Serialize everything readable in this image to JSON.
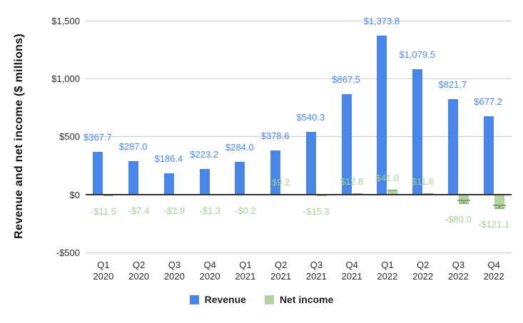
{
  "chart_data": {
    "type": "bar",
    "title": "",
    "xlabel": "",
    "ylabel": "Revenue and net income ($ millions)",
    "ylim": [
      -500,
      1500
    ],
    "grid": true,
    "legend_position": "bottom",
    "yticks": [
      {
        "value": 1500,
        "label": "$1,500"
      },
      {
        "value": 1000,
        "label": "$1,000"
      },
      {
        "value": 500,
        "label": "$500"
      },
      {
        "value": 0,
        "label": "$0"
      },
      {
        "value": -500,
        "label": "-$500"
      }
    ],
    "categories": [
      {
        "quarter": "Q1",
        "year": "2020"
      },
      {
        "quarter": "Q2",
        "year": "2020"
      },
      {
        "quarter": "Q3",
        "year": "2020"
      },
      {
        "quarter": "Q4",
        "year": "2020"
      },
      {
        "quarter": "Q1",
        "year": "2021"
      },
      {
        "quarter": "Q2",
        "year": "2021"
      },
      {
        "quarter": "Q3",
        "year": "2021"
      },
      {
        "quarter": "Q4",
        "year": "2021"
      },
      {
        "quarter": "Q1",
        "year": "2022"
      },
      {
        "quarter": "Q2",
        "year": "2022"
      },
      {
        "quarter": "Q3",
        "year": "2022"
      },
      {
        "quarter": "Q4",
        "year": "2022"
      }
    ],
    "series": [
      {
        "name": "Revenue",
        "color": "#4a86e8",
        "label_color": "#4a86e8",
        "values": [
          367.7,
          287.0,
          186.4,
          223.2,
          284.0,
          378.6,
          540.3,
          867.5,
          1373.8,
          1079.5,
          821.7,
          677.2
        ],
        "labels": [
          "$367.7",
          "$287.0",
          "$186.4",
          "$223.2",
          "$284.0",
          "$378.6",
          "$540.3",
          "$867.5",
          "$1,373.8",
          "$1,079.5",
          "$821.7",
          "$677.2"
        ]
      },
      {
        "name": "Net income",
        "color": "#b3d1a2",
        "cap_color": "#8fb17d",
        "whisker_color": "#7da06c",
        "label_color": "#a6ce94",
        "values": [
          -11.5,
          -7.4,
          -2.9,
          -1.3,
          -0.2,
          9.2,
          -15.3,
          12.8,
          41.0,
          11.6,
          -80.0,
          -121.1
        ],
        "labels": [
          "-$11.5",
          "-$7.4",
          "-$2.9",
          "-$1.3",
          "-$0.2",
          "$9.2",
          "-$15.3",
          "$12.8",
          "$41.0",
          "$11.6",
          "-$80.0",
          "-$121.1"
        ],
        "error_whisker_indices": [
          10,
          11
        ]
      }
    ]
  }
}
